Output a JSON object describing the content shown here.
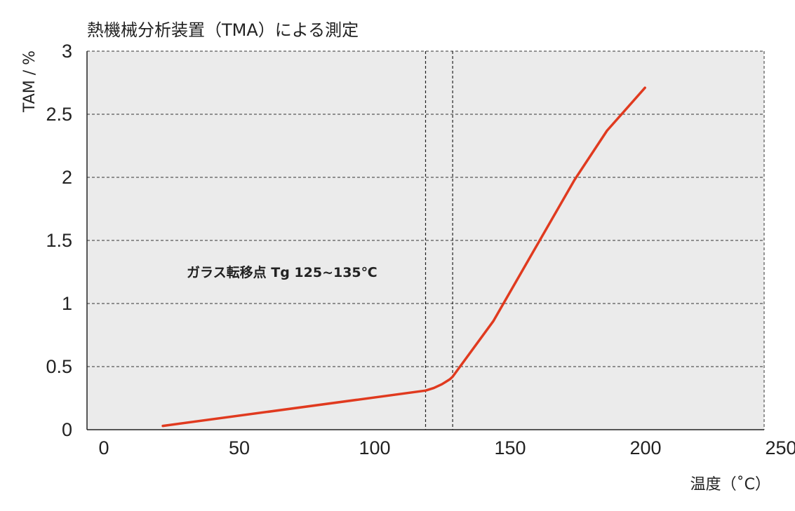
{
  "chart_data": {
    "type": "line",
    "title": "熱機械分析装置（TMA）による測定",
    "xlabel": "温度（˚C）",
    "ylabel": "TAM / %",
    "xlim": [
      0,
      250
    ],
    "ylim": [
      0,
      3
    ],
    "x_ticks": [
      0,
      50,
      100,
      150,
      200,
      250
    ],
    "x_tick_labels": [
      "0",
      "50",
      "100",
      "150",
      "200",
      "250"
    ],
    "y_ticks": [
      0,
      0.5,
      1,
      1.5,
      2,
      2.5,
      3
    ],
    "y_tick_labels": [
      "0",
      "0.5",
      "1",
      "1.5",
      "2",
      "2.5",
      "3"
    ],
    "grid": true,
    "background": "#ebebeb",
    "reference_lines_x": [
      125,
      135
    ],
    "annotation": "ガラス転移点 Tg 125~135℃",
    "series": [
      {
        "color": "#e03a1f",
        "x": [
          28,
          125,
          128,
          131,
          134,
          135,
          150,
          165,
          180,
          192,
          206
        ],
        "y": [
          0.03,
          0.31,
          0.33,
          0.36,
          0.4,
          0.42,
          0.86,
          1.42,
          1.98,
          2.37,
          2.71
        ]
      }
    ]
  }
}
